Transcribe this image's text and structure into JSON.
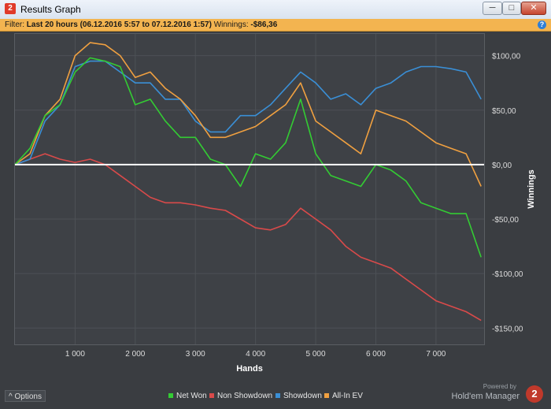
{
  "window": {
    "title": "Results Graph",
    "app_icon": "2",
    "minimize": "─",
    "maximize": "□",
    "close": "✕"
  },
  "filter": {
    "prefix": "Filter:",
    "range": "Last 20 hours (06.12.2016 5:57 to 07.12.2016 1:57)",
    "winnings_label": "Winnings:",
    "winnings_value": "-$86,36",
    "help_icon": "?"
  },
  "chart_data": {
    "type": "line",
    "xlabel": "Hands",
    "ylabel": "Winnings",
    "xlim": [
      0,
      7800
    ],
    "ylim": [
      -165,
      120
    ],
    "x_ticks": [
      1000,
      2000,
      3000,
      4000,
      5000,
      6000,
      7000
    ],
    "x_tick_labels": [
      "1 000",
      "2 000",
      "3 000",
      "4 000",
      "5 000",
      "6 000",
      "7 000"
    ],
    "y_ticks": [
      100,
      50,
      0,
      -50,
      -100,
      -150
    ],
    "y_tick_labels": [
      "$100,00",
      "$50,00",
      "$0,00",
      "-$50,00",
      "-$100,00",
      "-$150,00"
    ],
    "grid": true,
    "legend": "bottom",
    "colors": {
      "Net Won": "#33cc33",
      "Non Showdown": "#d94a4a",
      "Showdown": "#3a8fd6",
      "All-In EV": "#f0a040"
    },
    "x": [
      0,
      250,
      500,
      750,
      1000,
      1250,
      1500,
      1750,
      2000,
      2250,
      2500,
      2750,
      3000,
      3250,
      3500,
      3750,
      4000,
      4250,
      4500,
      4750,
      5000,
      5250,
      5500,
      5750,
      6000,
      6250,
      6500,
      6750,
      7000,
      7250,
      7500,
      7750
    ],
    "series": [
      {
        "name": "Net Won",
        "values": [
          0,
          15,
          45,
          55,
          85,
          98,
          95,
          90,
          55,
          60,
          40,
          25,
          25,
          5,
          0,
          -20,
          10,
          5,
          20,
          60,
          10,
          -10,
          -15,
          -20,
          0,
          -5,
          -15,
          -35,
          -40,
          -45,
          -45,
          -85
        ]
      },
      {
        "name": "Non Showdown",
        "values": [
          0,
          5,
          10,
          5,
          2,
          5,
          0,
          -10,
          -20,
          -30,
          -35,
          -35,
          -37,
          -40,
          -42,
          -50,
          -58,
          -60,
          -55,
          -40,
          -50,
          -60,
          -75,
          -85,
          -90,
          -95,
          -105,
          -115,
          -125,
          -130,
          -135,
          -143
        ]
      },
      {
        "name": "Showdown",
        "values": [
          0,
          5,
          40,
          55,
          90,
          95,
          95,
          85,
          75,
          75,
          60,
          60,
          40,
          30,
          30,
          45,
          45,
          55,
          70,
          85,
          75,
          60,
          65,
          55,
          70,
          75,
          85,
          90,
          90,
          88,
          85,
          60
        ]
      },
      {
        "name": "All-In EV",
        "values": [
          0,
          10,
          45,
          60,
          100,
          112,
          110,
          100,
          80,
          85,
          70,
          60,
          45,
          25,
          25,
          30,
          35,
          45,
          55,
          75,
          40,
          30,
          20,
          10,
          50,
          45,
          40,
          30,
          20,
          15,
          10,
          -20
        ]
      }
    ]
  },
  "legend": {
    "items": [
      "Net Won",
      "Non Showdown",
      "Showdown",
      "All-In EV"
    ]
  },
  "footer": {
    "options_label": "Options",
    "options_icon": "^",
    "powered_by": "Powered by",
    "brand": "Hold'em Manager",
    "brand_logo": "2"
  }
}
